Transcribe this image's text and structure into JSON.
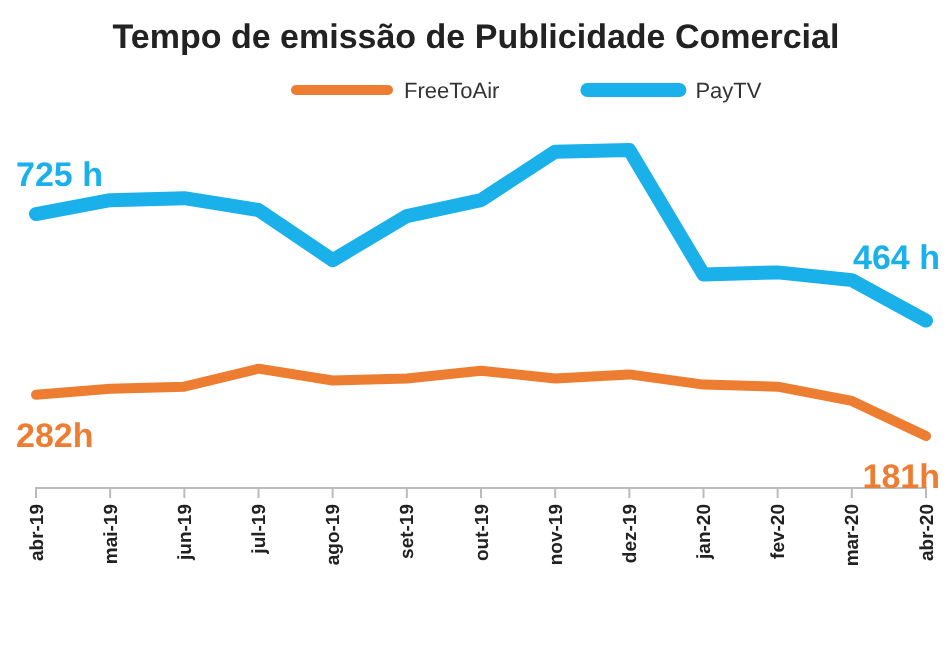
{
  "chart_data": {
    "type": "line",
    "title": "Tempo de emissão de Publicidade Comercial",
    "categories": [
      "abr-19",
      "mai-19",
      "jun-19",
      "jul-19",
      "ago-19",
      "set-19",
      "out-19",
      "nov-19",
      "dez-19",
      "jan-20",
      "fev-20",
      "mar-20",
      "abr-20"
    ],
    "legend": "top",
    "grid": false,
    "line_style": "solid",
    "marker": "none",
    "series": [
      {
        "name": "FreeToAir",
        "color": "#ed7d31",
        "values": [
          282,
          297,
          302,
          346,
          317,
          322,
          341,
          322,
          332,
          307,
          302,
          267,
          181
        ],
        "value_labels": [
          "282h",
          null,
          null,
          null,
          null,
          null,
          null,
          null,
          null,
          null,
          null,
          null,
          "181h"
        ]
      },
      {
        "name": "PayTV",
        "color": "#1ab0ea",
        "values": [
          725,
          759,
          764,
          735,
          612,
          720,
          759,
          878,
          882,
          577,
          582,
          563,
          464
        ],
        "value_labels": [
          "725 h",
          null,
          null,
          null,
          null,
          null,
          null,
          null,
          null,
          null,
          null,
          null,
          "464 h"
        ]
      }
    ]
  }
}
